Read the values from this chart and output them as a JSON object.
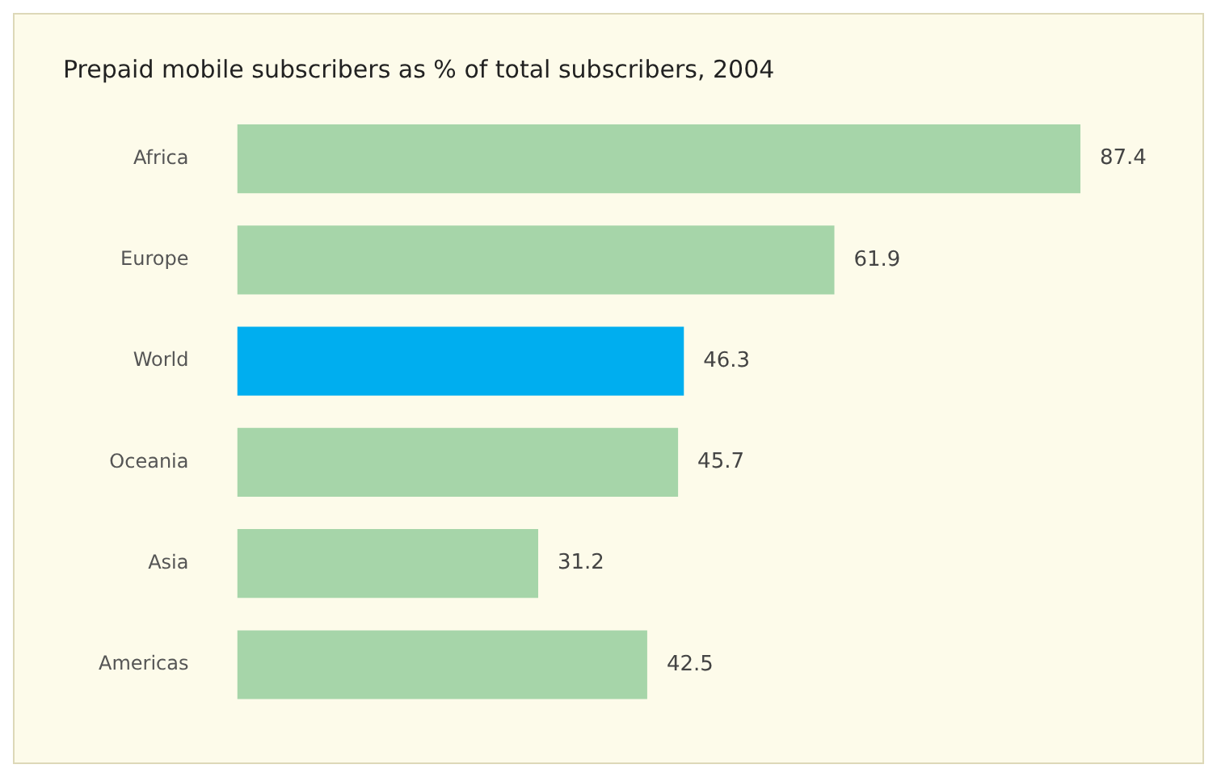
{
  "chart_data": {
    "type": "bar",
    "orientation": "horizontal",
    "title": "Prepaid mobile subscribers as % of total subscribers, 2004",
    "categories": [
      "Africa",
      "Europe",
      "World",
      "Oceania",
      "Asia",
      "Americas"
    ],
    "values": [
      87.4,
      61.9,
      46.3,
      45.7,
      31.2,
      42.5
    ],
    "colors": [
      "#a6d5a9",
      "#a6d5a9",
      "#00aeef",
      "#a6d5a9",
      "#a6d5a9",
      "#a6d5a9"
    ],
    "data_labels": true,
    "legend": false
  }
}
